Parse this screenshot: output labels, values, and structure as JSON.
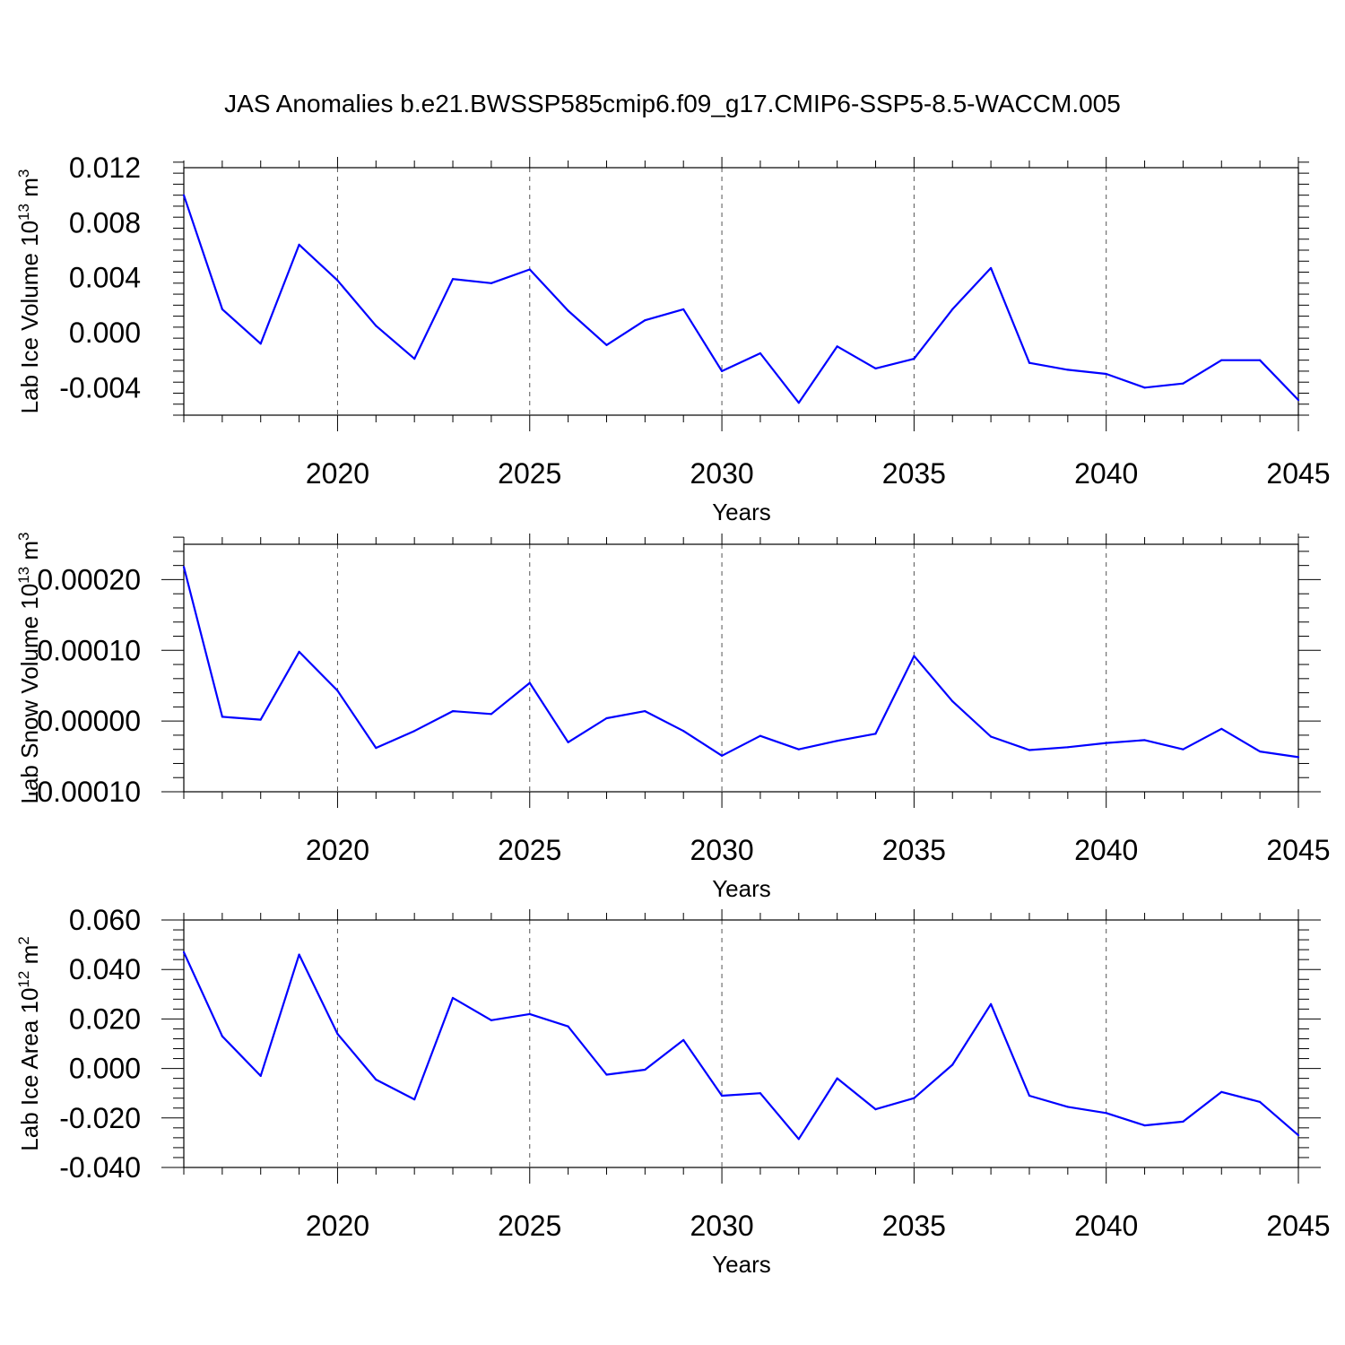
{
  "title": "JAS Anomalies b.e21.BWSSP585cmip6.f09_g17.CMIP6-SSP5-8.5-WACCM.005",
  "colors": {
    "line": "#0000ff",
    "axis": "#000000",
    "grid": "#555555"
  },
  "chart_data": [
    {
      "type": "line",
      "ylabel_main": "Lab Ice Volume 10",
      "ylabel_exp": "13",
      "ylabel_unit": "m",
      "ylabel_unit_exp": "3",
      "xlabel": "Years",
      "xlim": [
        2016,
        2045
      ],
      "ylim": [
        -0.006,
        0.012
      ],
      "yticks": [
        -0.004,
        0.0,
        0.004,
        0.008,
        0.012
      ],
      "ytick_labels": [
        "-0.004",
        "0.000",
        "0.004",
        "0.008",
        "0.012"
      ],
      "xticks": [
        2020,
        2025,
        2030,
        2035,
        2040,
        2045
      ],
      "xtick_labels": [
        "2020",
        "2025",
        "2030",
        "2035",
        "2040",
        "2045"
      ],
      "x": [
        2016,
        2017,
        2018,
        2019,
        2020,
        2021,
        2022,
        2023,
        2024,
        2025,
        2026,
        2027,
        2028,
        2029,
        2030,
        2031,
        2032,
        2033,
        2034,
        2035,
        2036,
        2037,
        2038,
        2039,
        2040,
        2041,
        2042,
        2043,
        2044,
        2045
      ],
      "values": [
        0.01,
        0.0017,
        -0.0008,
        0.0064,
        0.0038,
        0.0005,
        -0.0019,
        0.0039,
        0.0036,
        0.0046,
        0.0016,
        -0.0009,
        0.0009,
        0.0017,
        -0.0028,
        -0.0015,
        -0.0051,
        -0.001,
        -0.0026,
        -0.0019,
        0.0017,
        0.0047,
        -0.0022,
        -0.0027,
        -0.003,
        -0.004,
        -0.0037,
        -0.002,
        -0.002,
        -0.0049
      ]
    },
    {
      "type": "line",
      "ylabel_main": "Lab Snow Volume 10",
      "ylabel_exp": "13",
      "ylabel_unit": "m",
      "ylabel_unit_exp": "3",
      "xlabel": "Years",
      "xlim": [
        2016,
        2045
      ],
      "ylim": [
        -0.0001,
        0.00025
      ],
      "yticks": [
        -0.0001,
        0.0,
        0.0001,
        0.0002
      ],
      "ytick_labels": [
        "-0.00010",
        "0.00000",
        "0.00010",
        "0.00020"
      ],
      "xticks": [
        2020,
        2025,
        2030,
        2035,
        2040,
        2045
      ],
      "xtick_labels": [
        "2020",
        "2025",
        "2030",
        "2035",
        "2040",
        "2045"
      ],
      "x": [
        2016,
        2017,
        2018,
        2019,
        2020,
        2021,
        2022,
        2023,
        2024,
        2025,
        2026,
        2027,
        2028,
        2029,
        2030,
        2031,
        2032,
        2033,
        2034,
        2035,
        2036,
        2037,
        2038,
        2039,
        2040,
        2041,
        2042,
        2043,
        2044,
        2045
      ],
      "values": [
        0.000218,
        6e-06,
        2e-06,
        9.8e-05,
        4.3e-05,
        -3.8e-05,
        -1.4e-05,
        1.4e-05,
        1e-05,
        5.4e-05,
        -3e-05,
        4e-06,
        1.4e-05,
        -1.4e-05,
        -4.9e-05,
        -2.1e-05,
        -4e-05,
        -2.8e-05,
        -1.8e-05,
        9.2e-05,
        2.8e-05,
        -2.2e-05,
        -4.1e-05,
        -3.7e-05,
        -3.1e-05,
        -2.7e-05,
        -4e-05,
        -1.1e-05,
        -4.3e-05,
        -5.1e-05
      ]
    },
    {
      "type": "line",
      "ylabel_main": "Lab Ice Area 10",
      "ylabel_exp": "12",
      "ylabel_unit": "m",
      "ylabel_unit_exp": "2",
      "xlabel": "Years",
      "xlim": [
        2016,
        2045
      ],
      "ylim": [
        -0.04,
        0.06
      ],
      "yticks": [
        -0.04,
        -0.02,
        0.0,
        0.02,
        0.04,
        0.06
      ],
      "ytick_labels": [
        "-0.040",
        "-0.020",
        "0.000",
        "0.020",
        "0.040",
        "0.060"
      ],
      "xticks": [
        2020,
        2025,
        2030,
        2035,
        2040,
        2045
      ],
      "xtick_labels": [
        "2020",
        "2025",
        "2030",
        "2035",
        "2040",
        "2045"
      ],
      "x": [
        2016,
        2017,
        2018,
        2019,
        2020,
        2021,
        2022,
        2023,
        2024,
        2025,
        2026,
        2027,
        2028,
        2029,
        2030,
        2031,
        2032,
        2033,
        2034,
        2035,
        2036,
        2037,
        2038,
        2039,
        2040,
        2041,
        2042,
        2043,
        2044,
        2045
      ],
      "values": [
        0.047,
        0.013,
        -0.003,
        0.046,
        0.014,
        -0.0045,
        -0.0125,
        0.0285,
        0.0195,
        0.022,
        0.017,
        -0.0025,
        -0.0005,
        0.0115,
        -0.011,
        -0.01,
        -0.0285,
        -0.004,
        -0.0165,
        -0.012,
        0.0015,
        0.026,
        -0.011,
        -0.0155,
        -0.018,
        -0.023,
        -0.0215,
        -0.0095,
        -0.0135,
        -0.027
      ]
    }
  ]
}
